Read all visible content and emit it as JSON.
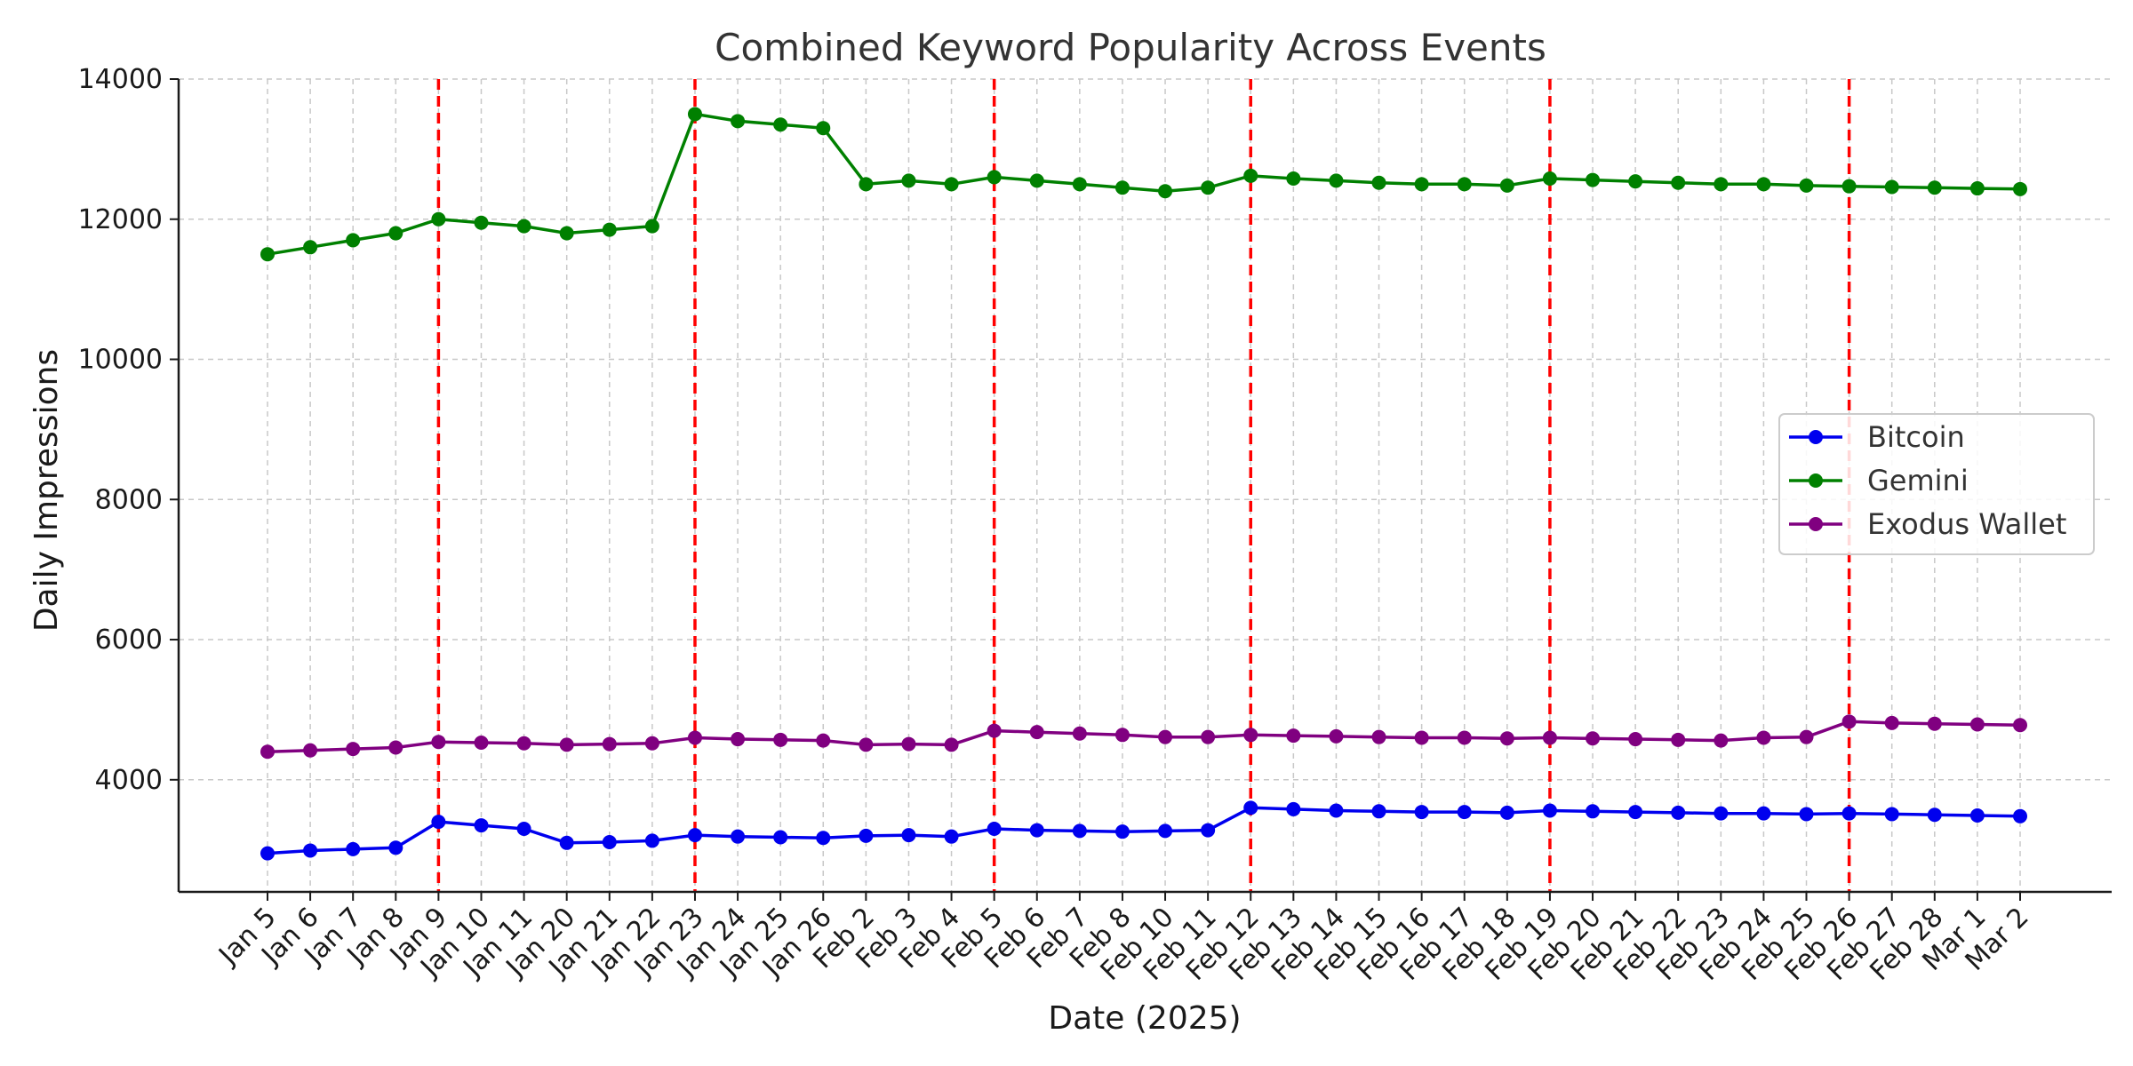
{
  "chart_data": {
    "type": "line",
    "title": "Combined Keyword Popularity Across Events",
    "xlabel": "Date (2025)",
    "ylabel": "Daily Impressions",
    "ylim": [
      2400,
      14000
    ],
    "yticks": [
      4000,
      6000,
      8000,
      10000,
      12000,
      14000
    ],
    "grid": true,
    "legend_position": "center-right",
    "categories": [
      "Jan 5",
      "Jan 6",
      "Jan 7",
      "Jan 8",
      "Jan 9",
      "Jan 10",
      "Jan 11",
      "Jan 20",
      "Jan 21",
      "Jan 22",
      "Jan 23",
      "Jan 24",
      "Jan 25",
      "Jan 26",
      "Feb 2",
      "Feb 3",
      "Feb 4",
      "Feb 5",
      "Feb 6",
      "Feb 7",
      "Feb 8",
      "Feb 10",
      "Feb 11",
      "Feb 12",
      "Feb 13",
      "Feb 14",
      "Feb 15",
      "Feb 16",
      "Feb 17",
      "Feb 18",
      "Feb 19",
      "Feb 20",
      "Feb 21",
      "Feb 22",
      "Feb 23",
      "Feb 24",
      "Feb 25",
      "Feb 26",
      "Feb 27",
      "Feb 28",
      "Mar 1",
      "Mar 2"
    ],
    "series": [
      {
        "name": "Bitcoin",
        "color": "#0000ee",
        "values": [
          2950,
          2990,
          3010,
          3030,
          3400,
          3350,
          3300,
          3100,
          3110,
          3130,
          3210,
          3190,
          3180,
          3170,
          3200,
          3210,
          3190,
          3300,
          3280,
          3270,
          3260,
          3270,
          3280,
          3600,
          3580,
          3560,
          3550,
          3540,
          3540,
          3530,
          3560,
          3550,
          3540,
          3530,
          3520,
          3520,
          3510,
          3520,
          3510,
          3500,
          3490,
          3480
        ]
      },
      {
        "name": "Gemini",
        "color": "#008000",
        "values": [
          11500,
          11600,
          11700,
          11800,
          12000,
          11950,
          11900,
          11800,
          11850,
          11900,
          13500,
          13400,
          13350,
          13300,
          12500,
          12550,
          12500,
          12600,
          12550,
          12500,
          12450,
          12400,
          12450,
          12620,
          12580,
          12550,
          12520,
          12500,
          12500,
          12480,
          12580,
          12560,
          12540,
          12520,
          12500,
          12500,
          12480,
          12470,
          12460,
          12450,
          12440,
          12430
        ]
      },
      {
        "name": "Exodus Wallet",
        "color": "#800080",
        "values": [
          4400,
          4420,
          4440,
          4460,
          4540,
          4530,
          4520,
          4500,
          4510,
          4520,
          4600,
          4580,
          4570,
          4560,
          4500,
          4510,
          4500,
          4700,
          4680,
          4660,
          4640,
          4610,
          4610,
          4640,
          4630,
          4620,
          4610,
          4600,
          4600,
          4590,
          4600,
          4590,
          4580,
          4570,
          4560,
          4600,
          4610,
          4830,
          4810,
          4800,
          4790,
          4780
        ]
      }
    ],
    "event_markers": {
      "color": "#ff0000",
      "categories": [
        "Jan 9",
        "Jan 23",
        "Feb 5",
        "Feb 12",
        "Feb 19",
        "Feb 26"
      ]
    }
  }
}
